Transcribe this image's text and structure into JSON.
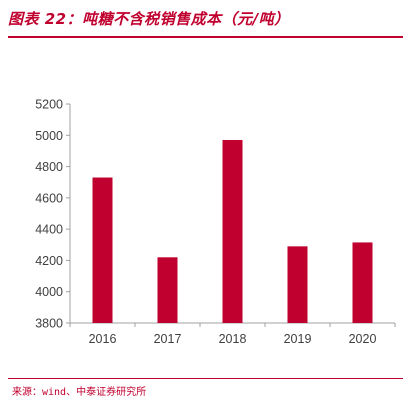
{
  "header": {
    "title": "图表 22：吨糖不含税销售成本（元/吨）"
  },
  "footer": {
    "source": "来源：wind、中泰证券研究所"
  },
  "colors": {
    "accent": "#c0002e",
    "bar": "#c0002e",
    "axis": "#a0a0a0",
    "text": "#404040"
  },
  "chart_data": {
    "type": "bar",
    "title": "图表 22：吨糖不含税销售成本（元/吨）",
    "categories": [
      "2016",
      "2017",
      "2018",
      "2019",
      "2020"
    ],
    "values": [
      4730,
      4220,
      4970,
      4290,
      4315
    ],
    "ylim": [
      3800,
      5200
    ],
    "yticks": [
      3800,
      4000,
      4200,
      4400,
      4600,
      4800,
      5000,
      5200
    ],
    "grid": false,
    "legend": "none"
  }
}
